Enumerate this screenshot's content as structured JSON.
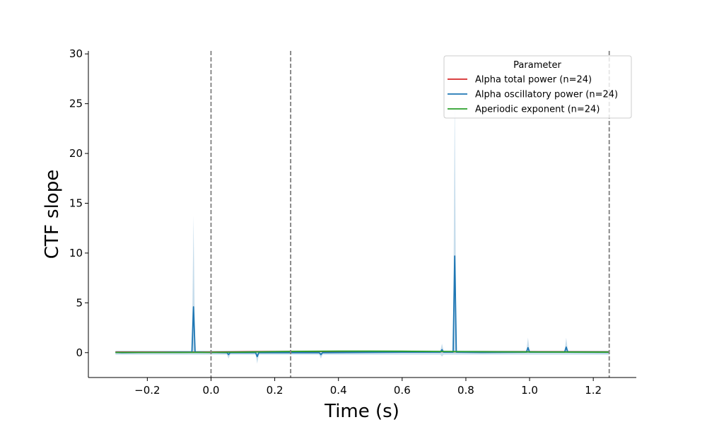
{
  "chart_data": {
    "type": "line",
    "title": "",
    "xlabel": "Time (s)",
    "ylabel": "CTF slope",
    "xlim": [
      -0.385,
      1.335
    ],
    "ylim": [
      -2.5,
      30.3
    ],
    "xticks": [
      -0.2,
      0.0,
      0.2,
      0.4,
      0.6,
      0.8,
      1.0,
      1.2
    ],
    "xtick_labels": [
      "−0.2",
      "0.0",
      "0.2",
      "0.4",
      "0.6",
      "0.8",
      "1.0",
      "1.2"
    ],
    "yticks": [
      0,
      5,
      10,
      15,
      20,
      25,
      30
    ],
    "ytick_labels": [
      "0",
      "5",
      "10",
      "15",
      "20",
      "25",
      "30"
    ],
    "grid": false,
    "vertical_lines": [
      0.0,
      0.25,
      1.25
    ],
    "legend": {
      "title": "Parameter",
      "placement": "top-right"
    },
    "series": [
      {
        "name": "Alpha total power (n=24)",
        "color": "#d62728",
        "x": [
          -0.3,
          -0.2,
          -0.1,
          0.0,
          0.15,
          0.3,
          0.5,
          0.7,
          0.9,
          1.1,
          1.25
        ],
        "y": [
          0.05,
          0.05,
          0.05,
          0.05,
          0.1,
          0.12,
          0.12,
          0.1,
          0.08,
          0.08,
          0.07
        ]
      },
      {
        "name": "Alpha oscillatory power (n=24)",
        "color": "#1f77b4",
        "x": [
          -0.3,
          -0.28,
          -0.2,
          -0.06,
          -0.055,
          -0.05,
          0.0,
          0.05,
          0.055,
          0.06,
          0.14,
          0.145,
          0.15,
          0.34,
          0.345,
          0.35,
          0.6,
          0.72,
          0.725,
          0.73,
          0.76,
          0.765,
          0.77,
          0.85,
          0.99,
          0.995,
          1.0,
          1.11,
          1.115,
          1.12,
          1.25
        ],
        "y": [
          0.02,
          0.0,
          0.02,
          0.05,
          4.6,
          0.05,
          0.02,
          0.0,
          -0.2,
          0.0,
          0.0,
          -0.4,
          0.0,
          0.0,
          -0.2,
          0.0,
          0.05,
          0.05,
          0.3,
          0.05,
          0.05,
          9.7,
          0.05,
          0.02,
          0.05,
          0.5,
          0.05,
          0.05,
          0.55,
          0.05,
          0.03
        ],
        "ci_upper": [
          0.2,
          0.2,
          0.2,
          0.2,
          13.8,
          0.2,
          0.2,
          0.2,
          0.2,
          0.2,
          0.2,
          0.2,
          0.2,
          0.2,
          0.2,
          0.2,
          0.2,
          0.2,
          0.9,
          0.2,
          0.2,
          26.0,
          0.2,
          0.2,
          0.2,
          1.5,
          0.2,
          0.2,
          1.5,
          0.2,
          0.2
        ],
        "ci_lower": [
          -0.2,
          -0.2,
          -0.2,
          -0.2,
          -0.2,
          -0.2,
          -0.2,
          -0.2,
          -0.6,
          -0.2,
          -0.2,
          -1.1,
          -0.2,
          -0.2,
          -0.6,
          -0.2,
          -0.2,
          -0.2,
          -0.4,
          -0.2,
          -0.2,
          -0.2,
          -0.2,
          -0.2,
          -0.2,
          -0.2,
          -0.2,
          -0.2,
          -0.2,
          -0.2,
          -0.2
        ]
      },
      {
        "name": "Aperiodic exponent (n=24)",
        "color": "#2ca02c",
        "x": [
          -0.3,
          -0.2,
          -0.1,
          0.0,
          0.1,
          0.2,
          0.3,
          0.4,
          0.5,
          0.6,
          0.7,
          0.8,
          0.9,
          1.0,
          1.1,
          1.25
        ],
        "y": [
          0.02,
          0.02,
          0.02,
          0.03,
          0.05,
          0.1,
          0.13,
          0.15,
          0.15,
          0.14,
          0.12,
          0.1,
          0.08,
          0.07,
          0.06,
          0.05
        ]
      }
    ]
  }
}
